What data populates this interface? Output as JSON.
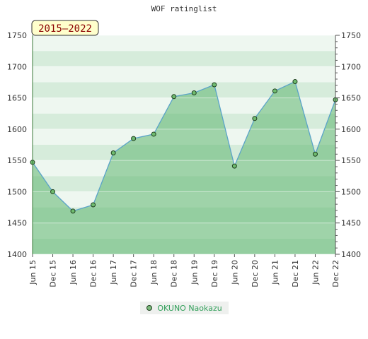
{
  "chart_data": {
    "type": "area",
    "title": "WOF ratinglist",
    "period_badge": "2015–2022",
    "categories": [
      "Jun 15",
      "Dec 15",
      "Jun 16",
      "Dec 16",
      "Jun 17",
      "Dec 17",
      "Jun 18",
      "Dec 18",
      "Jun 19",
      "Dec 19",
      "Jun 20",
      "Dec 20",
      "Jun 21",
      "Dec 21",
      "Jun 22",
      "Dec 22"
    ],
    "series": [
      {
        "name": "OKUNO Naokazu",
        "values": [
          1547,
          1500,
          1469,
          1479,
          1562,
          1585,
          1592,
          1652,
          1658,
          1671,
          1541,
          1617,
          1661,
          1676,
          1560,
          1647
        ]
      }
    ],
    "ylim": [
      1400,
      1750
    ],
    "yticks": [
      1400,
      1450,
      1500,
      1550,
      1600,
      1650,
      1700,
      1750
    ],
    "grid": true,
    "legend_position": "bottom-center",
    "colors": {
      "line": "#5aa3c8",
      "area_fill": "#5fb770",
      "marker_fill": "#6fbb6f",
      "marker_stroke": "#1e3f1e",
      "badge_bg": "#ffffcc",
      "badge_text": "#8b0000",
      "legend_text": "#2f9e58"
    }
  }
}
